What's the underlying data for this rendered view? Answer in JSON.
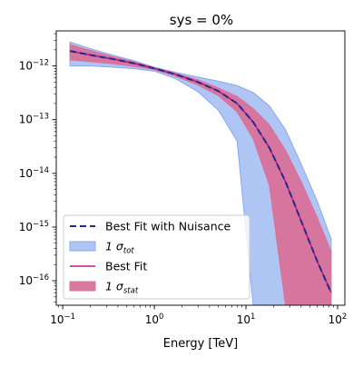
{
  "chart_data": {
    "type": "area",
    "title": "sys = 0%",
    "xlabel": "Energy [TeV]",
    "ylabel": "",
    "xscale": "log",
    "yscale": "log",
    "xlim": [
      0.085,
      120
    ],
    "ylim": [
      3.5e-17,
      4.5e-12
    ],
    "grid": false,
    "legend_position": "lower left",
    "x_ticks": [
      {
        "value": 0.1,
        "label": "10",
        "exp": "−1"
      },
      {
        "value": 1,
        "label": "10",
        "exp": "0"
      },
      {
        "value": 10,
        "label": "10",
        "exp": "1"
      },
      {
        "value": 100,
        "label": "10",
        "exp": "2"
      }
    ],
    "y_ticks": [
      {
        "value": 1e-16,
        "label": "10",
        "exp": "−16"
      },
      {
        "value": 1e-15,
        "label": "10",
        "exp": "−15"
      },
      {
        "value": 1e-14,
        "label": "10",
        "exp": "−14"
      },
      {
        "value": 1e-13,
        "label": "10",
        "exp": "−13"
      },
      {
        "value": 1e-12,
        "label": "10",
        "exp": "−12"
      }
    ],
    "x": [
      0.12,
      0.2,
      0.35,
      0.6,
      1.0,
      1.7,
      3.0,
      5.0,
      8.0,
      12.0,
      18.0,
      27.0,
      40.0,
      60.0,
      85.0
    ],
    "series": [
      {
        "name": "Best Fit with Nuisance",
        "kind": "line",
        "color": "#1f2a8a",
        "dash": true,
        "values": [
          1.9e-12,
          1.6e-12,
          1.35e-12,
          1.12e-12,
          9e-13,
          7e-13,
          5e-13,
          3.4e-13,
          2e-13,
          9e-14,
          3e-14,
          7e-15,
          1.3e-15,
          2.3e-16,
          6e-17
        ]
      },
      {
        "name": "1 σ_tot",
        "label_main": "1 σ",
        "label_sub": "tot",
        "kind": "band",
        "color": "#6d96ea",
        "opacity": 0.55,
        "edge_color": "#8aaaf0",
        "upper": [
          2.8e-12,
          2.1e-12,
          1.6e-12,
          1.25e-12,
          9.5e-13,
          7.6e-13,
          6.2e-13,
          5.2e-13,
          4.3e-13,
          3.2e-13,
          1.8e-13,
          6.5e-14,
          1.5e-14,
          3e-15,
          6e-16
        ],
        "lower": [
          1e-12,
          1e-12,
          9.5e-13,
          8.9e-13,
          8e-13,
          5.8e-13,
          3.3e-13,
          1.5e-13,
          4e-14,
          3.5e-17,
          3.5e-17,
          3.5e-17,
          3.5e-17,
          3.5e-17,
          3.5e-17
        ]
      },
      {
        "name": "Best Fit",
        "kind": "line",
        "color": "#c0178a",
        "dash": false,
        "values": [
          1.9e-12,
          1.6e-12,
          1.35e-12,
          1.12e-12,
          9e-13,
          7e-13,
          5e-13,
          3.4e-13,
          2e-13,
          9e-14,
          3e-14,
          7e-15,
          1.3e-15,
          2.3e-16,
          6e-17
        ]
      },
      {
        "name": "1 σ_stat",
        "label_main": "1 σ",
        "label_sub": "stat",
        "kind": "band",
        "color": "#d8729a",
        "opacity": 0.95,
        "edge_color": "#d8729a",
        "upper": [
          2.5e-12,
          1.95e-12,
          1.5e-12,
          1.2e-12,
          9.3e-13,
          7.3e-13,
          5.5e-13,
          3.9e-13,
          2.7e-13,
          1.6e-13,
          8e-14,
          2.7e-14,
          7e-15,
          1.5e-15,
          3.5e-16
        ],
        "lower": [
          1.3e-12,
          1.2e-12,
          1.1e-12,
          9.8e-13,
          8.5e-13,
          6.4e-13,
          4.4e-13,
          2.8e-13,
          1.4e-13,
          4.4e-14,
          6e-15,
          3.5e-17,
          3.5e-17,
          3.5e-17,
          3.5e-17
        ]
      }
    ]
  }
}
